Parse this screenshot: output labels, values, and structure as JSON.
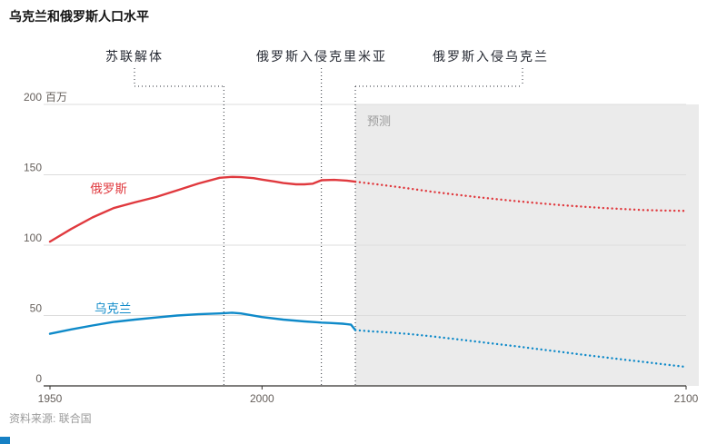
{
  "title": "乌克兰和俄罗斯人口水平",
  "source": "资料来源: 联合国",
  "colors": {
    "russia": "#e0393e",
    "ukraine": "#0f8ac9",
    "grid": "#dcdcdc",
    "axis": "#33302e",
    "tick": "#66605c",
    "annotation": "#262a33",
    "forecast_bg": "#ebebeb",
    "muted": "#9a9a9a",
    "logo": "#1680c4"
  },
  "chart_data": {
    "type": "line",
    "title": "乌克兰和俄罗斯人口水平",
    "y_unit": "百万",
    "x_range": [
      1950,
      2100
    ],
    "y_range": [
      0,
      200
    ],
    "x_ticks": [
      1950,
      2000,
      2100
    ],
    "y_ticks": [
      0,
      50,
      100,
      150,
      200
    ],
    "grid": true,
    "legend_position": "inline-labels",
    "forecast_start": 2022,
    "forecast_label": "预测",
    "annotations": [
      {
        "label": "苏联解体",
        "year": 1991
      },
      {
        "label": "俄罗斯入侵克里米亚",
        "year": 2014
      },
      {
        "label": "俄罗斯入侵乌克兰",
        "year": 2022
      }
    ],
    "series": [
      {
        "name": "俄罗斯",
        "color": "#e0393e",
        "label_pos": [
          1959.5,
          137
        ],
        "historical": [
          [
            1950,
            102.5
          ],
          [
            1955,
            111.5
          ],
          [
            1960,
            119.7
          ],
          [
            1965,
            126.3
          ],
          [
            1970,
            130.4
          ],
          [
            1975,
            134.2
          ],
          [
            1980,
            139
          ],
          [
            1985,
            143.8
          ],
          [
            1990,
            147.9
          ],
          [
            1993,
            148.5
          ],
          [
            1995,
            148.3
          ],
          [
            1998,
            147.6
          ],
          [
            2000,
            146.6
          ],
          [
            2003,
            145.2
          ],
          [
            2005,
            144.1
          ],
          [
            2008,
            143.2
          ],
          [
            2010,
            143.2
          ],
          [
            2012,
            143.7
          ],
          [
            2014,
            146.1
          ],
          [
            2017,
            146.4
          ],
          [
            2020,
            145.9
          ],
          [
            2022,
            145.1
          ]
        ],
        "forecast": [
          [
            2022,
            145.1
          ],
          [
            2025,
            144
          ],
          [
            2030,
            142.1
          ],
          [
            2035,
            140.1
          ],
          [
            2040,
            138
          ],
          [
            2045,
            136.1
          ],
          [
            2050,
            134.4
          ],
          [
            2055,
            132.8
          ],
          [
            2060,
            131.3
          ],
          [
            2065,
            129.9
          ],
          [
            2070,
            128.6
          ],
          [
            2075,
            127.5
          ],
          [
            2080,
            126.5
          ],
          [
            2085,
            125.7
          ],
          [
            2090,
            125
          ],
          [
            2095,
            124.6
          ],
          [
            2100,
            124.3
          ]
        ]
      },
      {
        "name": "乌克兰",
        "color": "#0f8ac9",
        "label_pos": [
          1960.5,
          52
        ],
        "historical": [
          [
            1950,
            37
          ],
          [
            1955,
            40.1
          ],
          [
            1960,
            42.9
          ],
          [
            1965,
            45.4
          ],
          [
            1970,
            47.1
          ],
          [
            1975,
            48.6
          ],
          [
            1980,
            50
          ],
          [
            1985,
            50.9
          ],
          [
            1990,
            51.5
          ],
          [
            1993,
            52
          ],
          [
            1995,
            51.5
          ],
          [
            2000,
            48.9
          ],
          [
            2005,
            47.1
          ],
          [
            2010,
            45.8
          ],
          [
            2013,
            45.2
          ],
          [
            2014,
            45
          ],
          [
            2016,
            44.7
          ],
          [
            2019,
            44.2
          ],
          [
            2021,
            43.5
          ],
          [
            2022,
            39.7
          ]
        ],
        "forecast": [
          [
            2022,
            39.7
          ],
          [
            2025,
            38.9
          ],
          [
            2030,
            38
          ],
          [
            2035,
            36.8
          ],
          [
            2040,
            35.2
          ],
          [
            2045,
            33.5
          ],
          [
            2050,
            31.7
          ],
          [
            2055,
            29.9
          ],
          [
            2060,
            28.1
          ],
          [
            2065,
            26.2
          ],
          [
            2070,
            24.3
          ],
          [
            2075,
            22.4
          ],
          [
            2080,
            20.6
          ],
          [
            2085,
            18.8
          ],
          [
            2090,
            17
          ],
          [
            2095,
            15.2
          ],
          [
            2100,
            13.5
          ]
        ]
      }
    ]
  }
}
